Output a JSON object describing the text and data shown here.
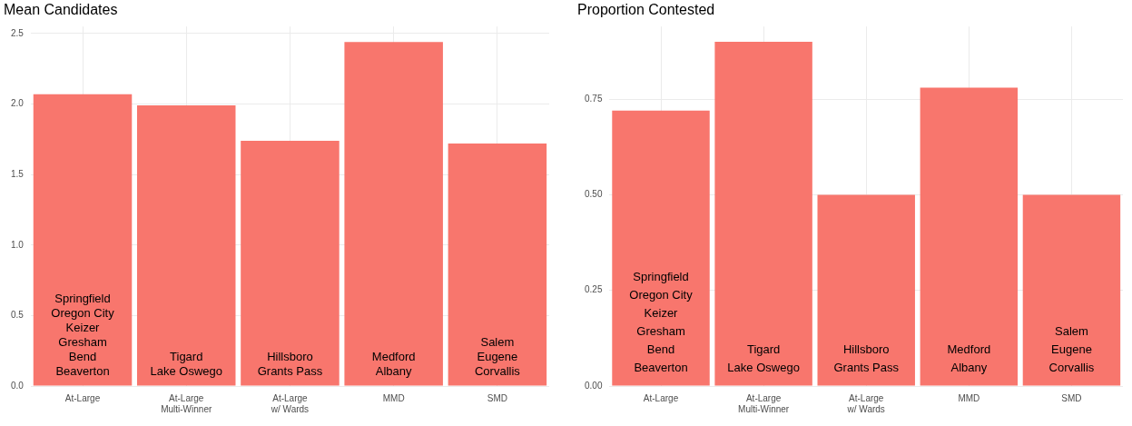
{
  "chart_data": [
    {
      "type": "bar",
      "title": "Mean Candidates",
      "categories": [
        "At-Large",
        "At-Large\nMulti-Winner",
        "At-Large\nw/ Wards",
        "MMD",
        "SMD"
      ],
      "values": [
        2.07,
        1.99,
        1.74,
        2.44,
        1.72
      ],
      "color": "#f8766d",
      "ylim": [
        0,
        2.55
      ],
      "yticks": [
        {
          "value": 0,
          "label": "0.0"
        },
        {
          "value": 0.5,
          "label": "0.5"
        },
        {
          "value": 1,
          "label": "1.0"
        },
        {
          "value": 1.5,
          "label": "1.5"
        },
        {
          "value": 2,
          "label": "2.0"
        },
        {
          "value": 2.5,
          "label": "2.5"
        }
      ],
      "grid": true,
      "annotations": [
        "Springfield\nOregon City\nKeizer\nGresham\nBend\nBeaverton",
        "Tigard\nLake Oswego",
        "Hillsboro\nGrants Pass",
        "Medford\nAlbany",
        "Salem\nEugene\nCorvallis"
      ]
    },
    {
      "type": "bar",
      "title": "Proportion Contested",
      "categories": [
        "At-Large",
        "At-Large\nMulti-Winner",
        "At-Large\nw/ Wards",
        "MMD",
        "SMD"
      ],
      "values": [
        0.72,
        0.9,
        0.5,
        0.78,
        0.5
      ],
      "color": "#f8766d",
      "ylim": [
        0,
        0.94
      ],
      "yticks": [
        {
          "value": 0,
          "label": "0.00"
        },
        {
          "value": 0.25,
          "label": "0.25"
        },
        {
          "value": 0.5,
          "label": "0.50"
        },
        {
          "value": 0.75,
          "label": "0.75"
        }
      ],
      "grid": true,
      "annotations": [
        "Springfield\nOregon City\nKeizer\nGresham\nBend\nBeaverton",
        "Tigard\nLake Oswego",
        "Hillsboro\nGrants Pass",
        "Medford\nAlbany",
        "Salem\nEugene\nCorvallis"
      ]
    }
  ]
}
